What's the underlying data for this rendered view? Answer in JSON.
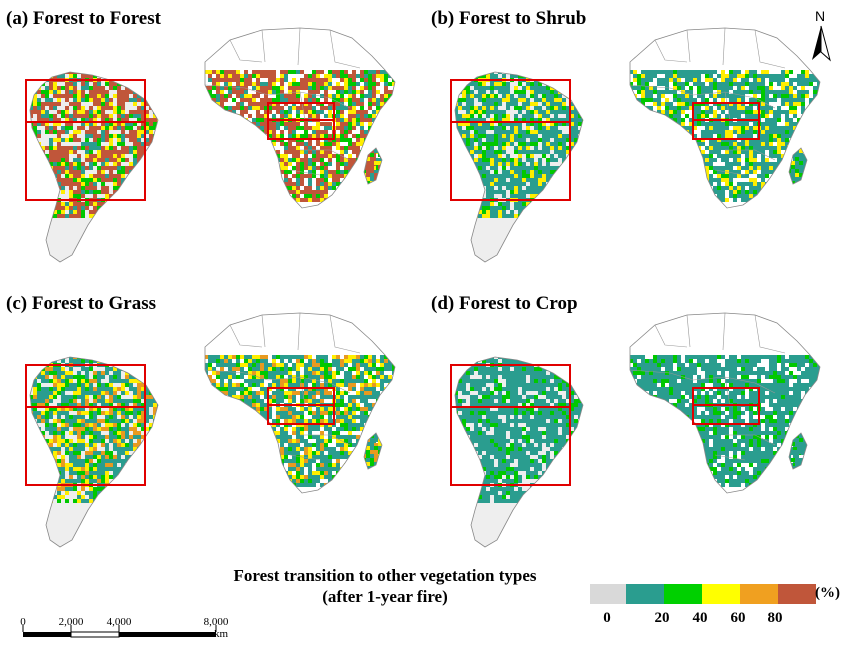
{
  "panels": [
    {
      "title": "(a) Forest to Forest",
      "dominant": "#c0563a",
      "secondary": "#ffee00",
      "tertiary": "#00c800",
      "base": "#2a9d8f"
    },
    {
      "title": "(b) Forest to Shrub",
      "dominant": "#2a9d8f",
      "secondary": "#00c800",
      "tertiary": "#ffee00",
      "base": "#2a9d8f"
    },
    {
      "title": "(c) Forest to Grass",
      "dominant": "#2a9d8f",
      "secondary": "#ffee00",
      "tertiary": "#e89a20",
      "base": "#00c800"
    },
    {
      "title": "(d) Forest to Crop",
      "dominant": "#2a9d8f",
      "secondary": "#2a9d8f",
      "tertiary": "#00c800",
      "base": "#2a9d8f"
    }
  ],
  "north_label": "N",
  "legend": {
    "title_line1": "Forest transition to other vegetation types",
    "title_line2": "(after 1-year fire)",
    "unit": "(%)",
    "colors": [
      "#d9d9d9",
      "#2a9d8f",
      "#00d000",
      "#ffff00",
      "#f0a020",
      "#c0563a"
    ],
    "ticks": [
      "0",
      "20",
      "40",
      "60",
      "80"
    ]
  },
  "scale": {
    "labels": [
      "0",
      "2,000",
      "4,000",
      "8,000"
    ],
    "unit": "km"
  },
  "box_color": "#e00000"
}
